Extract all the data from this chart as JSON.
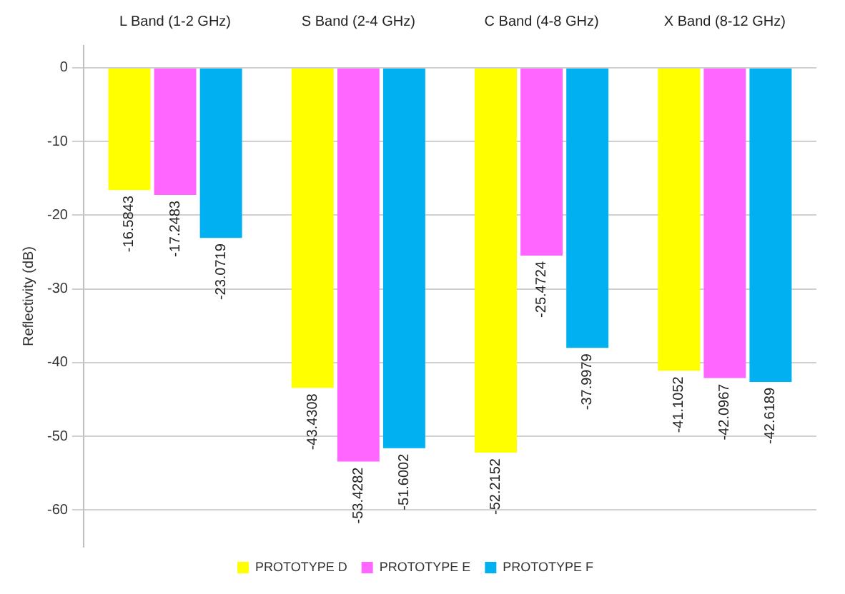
{
  "chart_data": {
    "type": "bar",
    "ylabel": "Reflectivity (dB)",
    "categories": [
      "L Band (1-2 GHz)",
      "S Band (2-4 GHz)",
      "C Band (4-8 GHz)",
      "X Band (8-12 GHz)"
    ],
    "series": [
      {
        "name": "PROTOTYPE D",
        "color": "#ffff00",
        "values": [
          -16.5843,
          -43.4308,
          -52.2152,
          -41.1052
        ]
      },
      {
        "name": "PROTOTYPE E",
        "color": "#ff66ff",
        "values": [
          -17.2483,
          -53.4282,
          -25.4724,
          -42.0967
        ]
      },
      {
        "name": "PROTOTYPE F",
        "color": "#00b0f0",
        "values": [
          -23.0719,
          -51.6002,
          -37.9979,
          -42.6189
        ]
      }
    ],
    "ylim": [
      -65,
      3
    ],
    "yticks": [
      0,
      -10,
      -20,
      -30,
      -40,
      -50,
      -60
    ],
    "grid": "y",
    "legend": "bottom",
    "data_labels": true
  }
}
